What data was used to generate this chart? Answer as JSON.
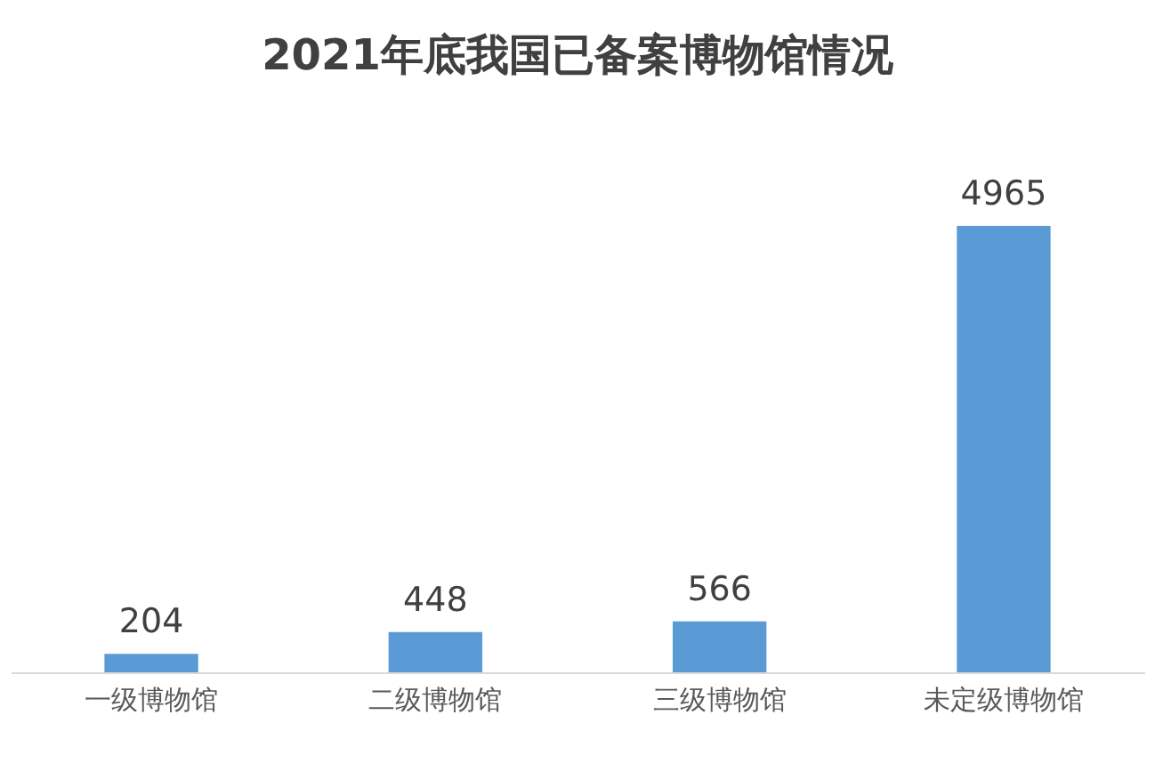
{
  "chart_data": {
    "type": "bar",
    "title": "2021年底我国已备案博物馆情况",
    "categories": [
      "一级博物馆",
      "二级博物馆",
      "三级博物馆",
      "未定级博物馆"
    ],
    "values": [
      204,
      448,
      566,
      4965
    ],
    "color": "#5b9bd5",
    "data_labels": true,
    "tick_labels": "x"
  }
}
